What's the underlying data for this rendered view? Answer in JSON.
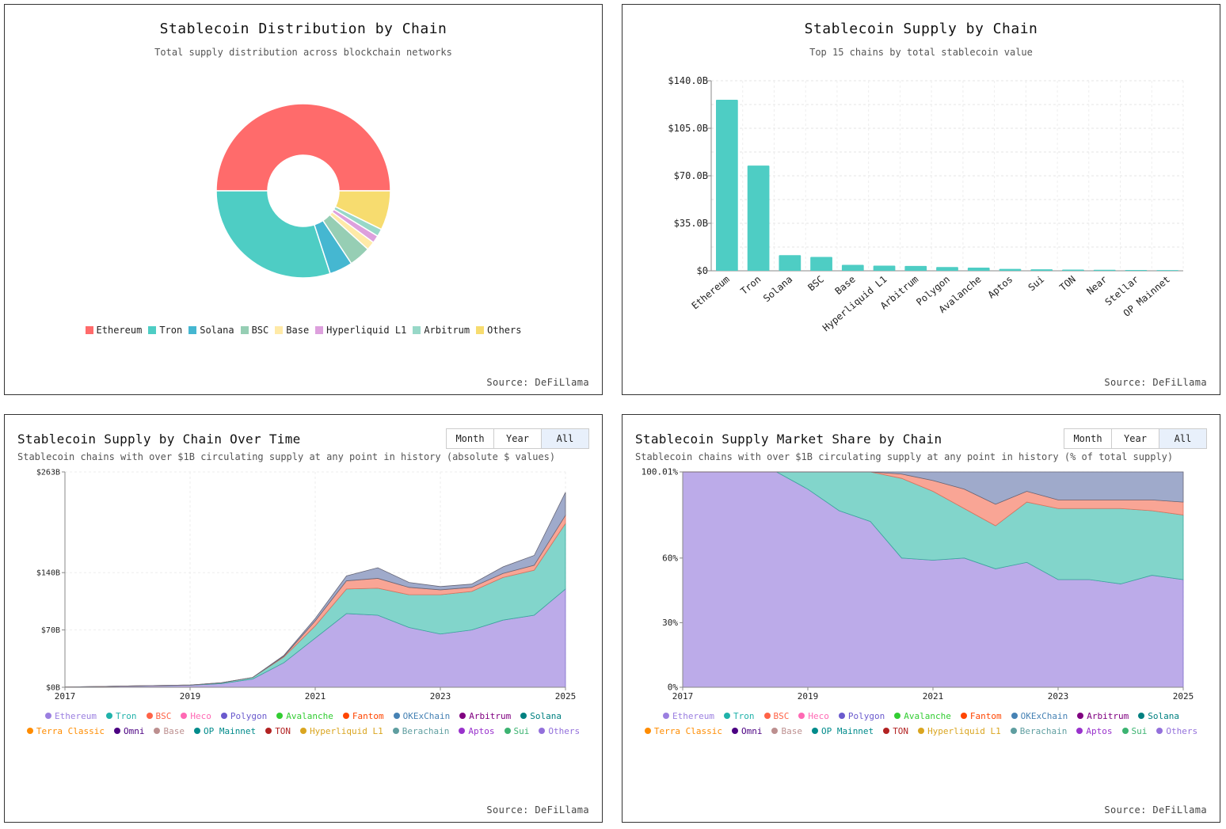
{
  "colors": {
    "ethereum": "#ff6b6b",
    "tron": "#4ecdc4",
    "solana": "#45b7d1",
    "bsc": "#96ceb4",
    "base": "#ffeaa7",
    "hyperliquid": "#dda0dd",
    "arbitrum": "#98d8c8",
    "others": "#f7dc6f",
    "bar": "#4ecdc4",
    "area_eth": "#b8a6e8",
    "area_tron": "#7bd3c8",
    "area_bsc": "#f9a08f",
    "area_line": "#6b6fc0"
  },
  "pie": {
    "title": "Stablecoin Distribution by Chain",
    "subtitle": "Total supply distribution across blockchain networks",
    "source": "Source: DeFiLlama",
    "legend": [
      {
        "label": "Ethereum",
        "color": "#ff6b6b"
      },
      {
        "label": "Tron",
        "color": "#4ecdc4"
      },
      {
        "label": "Solana",
        "color": "#45b7d1"
      },
      {
        "label": "BSC",
        "color": "#96ceb4"
      },
      {
        "label": "Base",
        "color": "#ffeaa7"
      },
      {
        "label": "Hyperliquid L1",
        "color": "#dda0dd"
      },
      {
        "label": "Arbitrum",
        "color": "#98d8c8"
      },
      {
        "label": "Others",
        "color": "#f7dc6f"
      }
    ]
  },
  "bar": {
    "title": "Stablecoin Supply by Chain",
    "subtitle": "Top 15 chains by total stablecoin value",
    "source": "Source: DeFiLlama",
    "yticks": [
      "$0",
      "$35.0B",
      "$70.0B",
      "$105.0B",
      "$140.0B"
    ]
  },
  "abs": {
    "title": "Stablecoin Supply by Chain Over Time",
    "subtitle": "Stablecoin chains with over $1B circulating supply at any point in history (absolute $ values)",
    "source": "Source: DeFiLlama",
    "buttons": [
      "Month",
      "Year",
      "All"
    ],
    "active_button": "All",
    "yticks": [
      "$0B",
      "$70B",
      "$140B",
      "$263B"
    ],
    "xticks": [
      "2017",
      "2019",
      "2021",
      "2023",
      "2025"
    ]
  },
  "share": {
    "title": "Stablecoin Supply Market Share by Chain",
    "subtitle": "Stablecoin chains with over $1B circulating supply at any point in history (% of total supply)",
    "source": "Source: DeFiLlama",
    "buttons": [
      "Month",
      "Year",
      "All"
    ],
    "active_button": "All",
    "yticks": [
      "0%",
      "30%",
      "60%",
      "100.01%"
    ],
    "xticks": [
      "2017",
      "2019",
      "2021",
      "2023",
      "2025"
    ]
  },
  "series_legend": [
    {
      "label": "Ethereum",
      "color": "#9b7fe0"
    },
    {
      "label": "Tron",
      "color": "#20b2aa"
    },
    {
      "label": "BSC",
      "color": "#ff6347"
    },
    {
      "label": "Heco",
      "color": "#ff69b4"
    },
    {
      "label": "Polygon",
      "color": "#6a5acd"
    },
    {
      "label": "Avalanche",
      "color": "#32cd32"
    },
    {
      "label": "Fantom",
      "color": "#ff4500"
    },
    {
      "label": "OKExChain",
      "color": "#4682b4"
    },
    {
      "label": "Arbitrum",
      "color": "#800080"
    },
    {
      "label": "Solana",
      "color": "#008080"
    },
    {
      "label": "Terra Classic",
      "color": "#ff8c00"
    },
    {
      "label": "Omni",
      "color": "#4b0082"
    },
    {
      "label": "Base",
      "color": "#bc8f8f"
    },
    {
      "label": "OP Mainnet",
      "color": "#008b8b"
    },
    {
      "label": "TON",
      "color": "#b22222"
    },
    {
      "label": "Hyperliquid L1",
      "color": "#daa520"
    },
    {
      "label": "Berachain",
      "color": "#5f9ea0"
    },
    {
      "label": "Aptos",
      "color": "#9932cc"
    },
    {
      "label": "Sui",
      "color": "#3cb371"
    },
    {
      "label": "Others",
      "color": "#9370db"
    }
  ],
  "chart_data": [
    {
      "type": "pie",
      "title": "Stablecoin Distribution by Chain",
      "subtitle": "Total supply distribution across blockchain networks",
      "categories": [
        "Ethereum",
        "Tron",
        "Solana",
        "BSC",
        "Base",
        "Hyperliquid L1",
        "Arbitrum",
        "Others"
      ],
      "values": [
        50.0,
        30.0,
        4.3,
        4.0,
        1.6,
        1.4,
        1.4,
        7.3
      ],
      "legend": "bottom"
    },
    {
      "type": "bar",
      "title": "Stablecoin Supply by Chain",
      "subtitle": "Top 15 chains by total stablecoin value",
      "categories": [
        "Ethereum",
        "Tron",
        "Solana",
        "BSC",
        "Base",
        "Hyperliquid L1",
        "Arbitrum",
        "Polygon",
        "Avalanche",
        "Aptos",
        "Sui",
        "TON",
        "Near",
        "Stellar",
        "OP Mainnet"
      ],
      "values": [
        126,
        77.5,
        11.5,
        10.2,
        4.4,
        3.8,
        3.6,
        2.8,
        2.3,
        1.4,
        1.1,
        0.9,
        0.7,
        0.6,
        0.5
      ],
      "ylim": [
        0,
        140
      ],
      "grid": true
    },
    {
      "type": "area",
      "title": "Stablecoin Supply by Chain Over Time",
      "subtitle": "Stablecoin chains with over $1B circulating supply at any point in history (absolute $ values)",
      "x": [
        "2017",
        "2018",
        "2019",
        "2019.5",
        "2020",
        "2020.5",
        "2021",
        "2021.5",
        "2022",
        "2022.5",
        "2023",
        "2023.5",
        "2024",
        "2024.5",
        "2025"
      ],
      "series": [
        {
          "name": "Ethereum",
          "values": [
            0.3,
            1.5,
            2.5,
            4.5,
            10,
            30,
            60,
            90,
            88,
            73,
            65,
            70,
            82,
            88,
            120
          ]
        },
        {
          "name": "Tron",
          "values": [
            0,
            0,
            0.2,
            1,
            2,
            7,
            15,
            30,
            33,
            40,
            48,
            47,
            52,
            55,
            80
          ]
        },
        {
          "name": "BSC",
          "values": [
            0,
            0,
            0,
            0,
            0,
            1,
            6,
            10,
            12,
            9,
            6,
            5,
            5,
            6,
            10
          ]
        },
        {
          "name": "Others",
          "values": [
            0,
            0,
            0,
            0,
            0,
            1,
            3,
            6,
            13,
            6,
            4,
            4,
            8,
            12,
            28
          ]
        }
      ],
      "ylim": [
        0,
        263
      ],
      "grid": true,
      "legend": "bottom"
    },
    {
      "type": "area",
      "title": "Stablecoin Supply Market Share by Chain",
      "subtitle": "Stablecoin chains with over $1B circulating supply at any point in history (% of total supply)",
      "x": [
        "2017",
        "2018",
        "2018.5",
        "2019",
        "2019.5",
        "2020",
        "2020.5",
        "2021",
        "2021.5",
        "2022",
        "2022.5",
        "2023",
        "2023.5",
        "2024",
        "2024.5",
        "2025"
      ],
      "series": [
        {
          "name": "Ethereum",
          "values": [
            100,
            100,
            100,
            92,
            82,
            77,
            60,
            59,
            60,
            55,
            58,
            50,
            50,
            48,
            52,
            50
          ]
        },
        {
          "name": "Tron",
          "values": [
            0,
            0,
            0,
            8,
            18,
            23,
            37,
            32,
            23,
            20,
            28,
            33,
            33,
            35,
            30,
            30
          ]
        },
        {
          "name": "BSC",
          "values": [
            0,
            0,
            0,
            0,
            0,
            0,
            2,
            5,
            9,
            10,
            5,
            4,
            4,
            4,
            5,
            6
          ]
        },
        {
          "name": "Others",
          "values": [
            0,
            0,
            0,
            0,
            0,
            0,
            1,
            4,
            8,
            15,
            9,
            13,
            13,
            13,
            13,
            14
          ]
        }
      ],
      "ylim": [
        0,
        100.01
      ],
      "grid": true,
      "legend": "bottom"
    }
  ]
}
